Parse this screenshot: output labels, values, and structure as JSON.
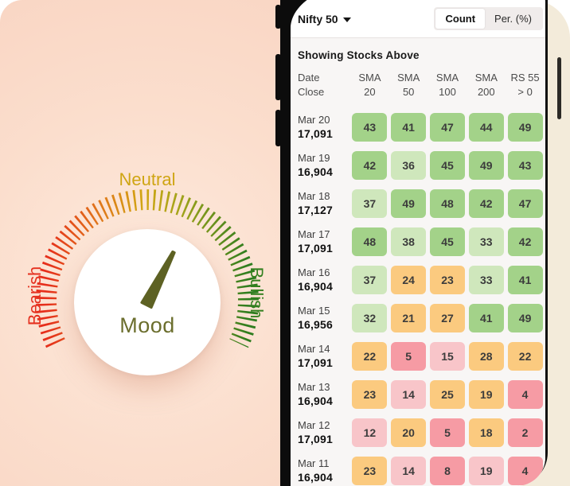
{
  "mood_card": {
    "gauge": {
      "label_neutral": "Neutral",
      "label_bearish": "Bearish",
      "label_bullish": "Bullish",
      "label_center": "Mood"
    },
    "colors": {
      "bearish_red": "#e5301f",
      "neutral_gold": "#cfa513",
      "bullish_green": "#33801f",
      "needle_olive": "#5d6123",
      "mood_text": "#6b6e2d",
      "card_background": "#fbdecd"
    }
  },
  "phone": {
    "index_selector": "Nifty 50",
    "tabs": {
      "count": "Count",
      "percent": "Per. (%)"
    },
    "table": {
      "section_title": "Showing Stocks Above",
      "columns": [
        {
          "l1": "Date",
          "l2": "Close"
        },
        {
          "l1": "SMA",
          "l2": "20"
        },
        {
          "l1": "SMA",
          "l2": "50"
        },
        {
          "l1": "SMA",
          "l2": "100"
        },
        {
          "l1": "SMA",
          "l2": "200"
        },
        {
          "l1": "RS 55",
          "l2": "> 0"
        }
      ],
      "cell_palette": {
        "strong_green": "#a3d289",
        "light_green": "#cfe7bc",
        "orange": "#fbca7f",
        "light_pink": "#f8c5c9",
        "pink": "#f69ba4"
      },
      "rows": [
        {
          "date": "Mar 20",
          "close": "17,091",
          "values": [
            43,
            41,
            47,
            44,
            49
          ],
          "levels": [
            "strong_green",
            "strong_green",
            "strong_green",
            "strong_green",
            "strong_green"
          ]
        },
        {
          "date": "Mar 19",
          "close": "16,904",
          "values": [
            42,
            36,
            45,
            49,
            43
          ],
          "levels": [
            "strong_green",
            "light_green",
            "strong_green",
            "strong_green",
            "strong_green"
          ]
        },
        {
          "date": "Mar 18",
          "close": "17,127",
          "values": [
            37,
            49,
            48,
            42,
            47
          ],
          "levels": [
            "light_green",
            "strong_green",
            "strong_green",
            "strong_green",
            "strong_green"
          ]
        },
        {
          "date": "Mar 17",
          "close": "17,091",
          "values": [
            48,
            38,
            45,
            33,
            42
          ],
          "levels": [
            "strong_green",
            "light_green",
            "strong_green",
            "light_green",
            "strong_green"
          ]
        },
        {
          "date": "Mar 16",
          "close": "16,904",
          "values": [
            37,
            24,
            23,
            33,
            41
          ],
          "levels": [
            "light_green",
            "orange",
            "orange",
            "light_green",
            "strong_green"
          ]
        },
        {
          "date": "Mar 15",
          "close": "16,956",
          "values": [
            32,
            21,
            27,
            41,
            49
          ],
          "levels": [
            "light_green",
            "orange",
            "orange",
            "strong_green",
            "strong_green"
          ]
        },
        {
          "date": "Mar 14",
          "close": "17,091",
          "values": [
            22,
            5,
            15,
            28,
            22
          ],
          "levels": [
            "orange",
            "pink",
            "light_pink",
            "orange",
            "orange"
          ]
        },
        {
          "date": "Mar 13",
          "close": "16,904",
          "values": [
            23,
            14,
            25,
            19,
            4
          ],
          "levels": [
            "orange",
            "light_pink",
            "orange",
            "orange",
            "pink"
          ]
        },
        {
          "date": "Mar 12",
          "close": "17,091",
          "values": [
            12,
            20,
            5,
            18,
            2
          ],
          "levels": [
            "light_pink",
            "orange",
            "pink",
            "orange",
            "pink"
          ]
        },
        {
          "date": "Mar 11",
          "close": "16,904",
          "values": [
            23,
            14,
            8,
            19,
            4
          ],
          "levels": [
            "orange",
            "light_pink",
            "pink",
            "light_pink",
            "pink"
          ]
        }
      ]
    }
  }
}
